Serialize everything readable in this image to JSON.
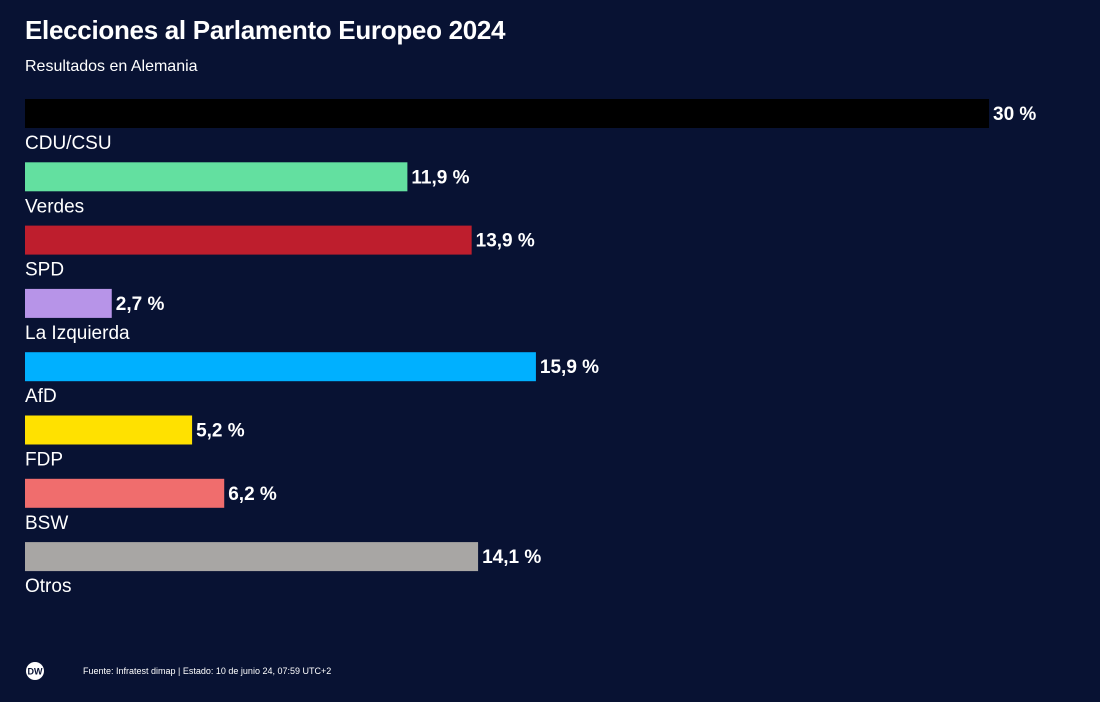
{
  "header": {
    "title": "Elecciones al Parlamento Europeo 2024",
    "subtitle": "Resultados en Alemania"
  },
  "footer": {
    "logo_text": "DW",
    "source": "Fuente: Infratest dimap | Estado: 10 de junio 24, 07:59 UTC+2"
  },
  "chart_data": {
    "type": "bar",
    "orientation": "horizontal",
    "title": "Elecciones al Parlamento Europeo 2024",
    "subtitle": "Resultados en Alemania",
    "categories": [
      "CDU/CSU",
      "Verdes",
      "SPD",
      "La Izquierda",
      "AfD",
      "FDP",
      "BSW",
      "Otros"
    ],
    "values": [
      30,
      11.9,
      13.9,
      2.7,
      15.9,
      5.2,
      6.2,
      14.1
    ],
    "value_labels": [
      "30 %",
      "11,9 %",
      "13,9 %",
      "2,7 %",
      "15,9 %",
      "5,2 %",
      "6,2 %",
      "14,1 %"
    ],
    "colors": [
      "#000000",
      "#63e0a0",
      "#be1e2d",
      "#b794e8",
      "#00b0ff",
      "#ffe100",
      "#f06d6d",
      "#a8a6a4"
    ],
    "xlim": [
      0,
      30
    ],
    "grid": false,
    "legend": "none"
  }
}
